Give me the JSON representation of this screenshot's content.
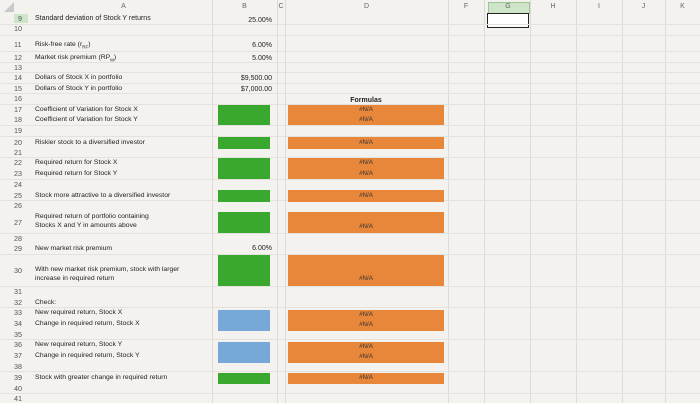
{
  "columns": [
    "A",
    "B",
    "C",
    "D",
    "F",
    "G",
    "H",
    "I",
    "J",
    "K"
  ],
  "rows": [
    {
      "n": "9",
      "label": "Standard deviation of Stock Y returns",
      "value": "25.00%"
    },
    {
      "n": "10",
      "label": "",
      "value": ""
    },
    {
      "n": "11",
      "label": "Risk-free rate (r",
      "sub": "RF",
      "label_end": ")",
      "value": "6.00%"
    },
    {
      "n": "12",
      "label": "Market risk premium (RP",
      "sub": "M",
      "label_end": ")",
      "value": "5.00%"
    },
    {
      "n": "13",
      "label": "",
      "value": ""
    },
    {
      "n": "14",
      "label": "Dollars of Stock X in portfolio",
      "value": "$9,500.00"
    },
    {
      "n": "15",
      "label": "Dollars of Stock Y in portfolio",
      "value": "$7,000.00"
    },
    {
      "n": "16",
      "label": "",
      "value": ""
    },
    {
      "n": "17",
      "label": "Coefficient of Variation for Stock X",
      "value": ""
    },
    {
      "n": "18",
      "label": "Coefficient of Variation for Stock Y",
      "value": ""
    },
    {
      "n": "19",
      "label": "",
      "value": ""
    },
    {
      "n": "20",
      "label": "Riskier stock to a diversified investor",
      "value": ""
    },
    {
      "n": "21",
      "label": "",
      "value": ""
    },
    {
      "n": "22",
      "label": "Required return for Stock X",
      "value": ""
    },
    {
      "n": "23",
      "label": "Required return for Stock Y",
      "value": ""
    },
    {
      "n": "24",
      "label": "",
      "value": ""
    },
    {
      "n": "25",
      "label": "Stock more attractive to a diversified investor",
      "value": ""
    },
    {
      "n": "26",
      "label": "",
      "value": ""
    },
    {
      "n": "27",
      "label": "Required return of portfolio containing",
      "label2": "Stocks X and Y in amounts above",
      "value": ""
    },
    {
      "n": "28",
      "label": "",
      "value": ""
    },
    {
      "n": "29",
      "label": "New market risk premium",
      "value": "6.00%"
    },
    {
      "n": "30",
      "label": "With new market risk premium, stock with larger",
      "label2": "increase in required return",
      "value": ""
    },
    {
      "n": "31",
      "label": "",
      "value": ""
    },
    {
      "n": "32",
      "label": "Check:",
      "value": ""
    },
    {
      "n": "33",
      "label": "New required return, Stock X",
      "value": ""
    },
    {
      "n": "34",
      "label": "Change in required return, Stock X",
      "value": ""
    },
    {
      "n": "35",
      "label": "",
      "value": ""
    },
    {
      "n": "36",
      "label": "New required return, Stock Y",
      "value": ""
    },
    {
      "n": "37",
      "label": "Change in required return, Stock Y",
      "value": ""
    },
    {
      "n": "38",
      "label": "",
      "value": ""
    },
    {
      "n": "39",
      "label": "Stock with greater change in required return",
      "value": ""
    },
    {
      "n": "40",
      "label": "",
      "value": ""
    },
    {
      "n": "41",
      "label": "",
      "value": ""
    }
  ],
  "formulas": {
    "header": "Formulas",
    "na": "#N/A"
  },
  "colors": {
    "green": "#3aa82f",
    "blue": "#76a8d8",
    "orange": "#e8863a"
  }
}
